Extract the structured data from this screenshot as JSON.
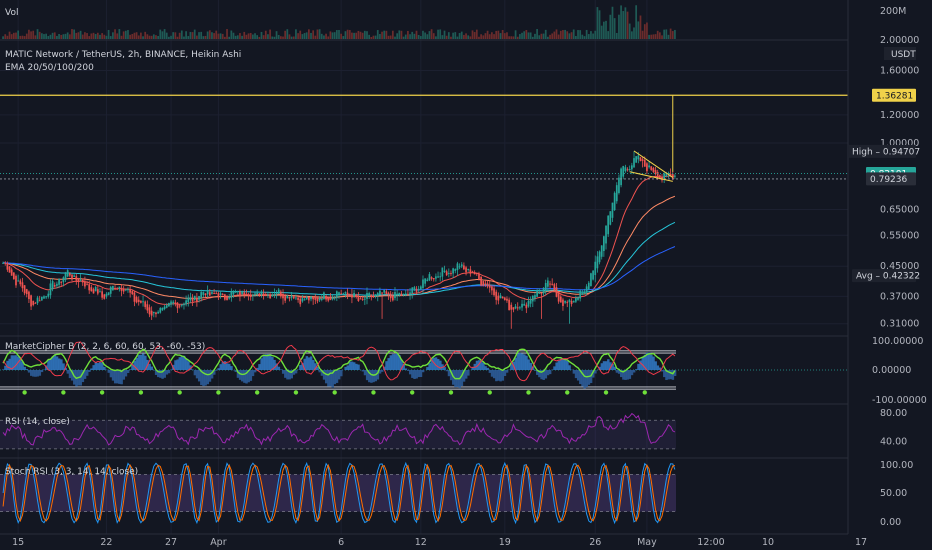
{
  "header": {
    "vol_label": "Vol",
    "symbol_line": "MATIC Network / TetherUS, 2h, BINANCE, Heikin Ashi",
    "ema_line": "EMA 20/50/100/200",
    "currency": "USDT"
  },
  "volume_axis": {
    "ticks": [
      "200M",
      "2.00000"
    ]
  },
  "price_axis": {
    "ticks": [
      {
        "label": "1.60000",
        "value": 1.6
      },
      {
        "label": "1.20000",
        "value": 1.2
      },
      {
        "label": "1.00000",
        "value": 1.0
      },
      {
        "label": "0.65000",
        "value": 0.65
      },
      {
        "label": "0.55000",
        "value": 0.55
      },
      {
        "label": "0.45000",
        "value": 0.45
      },
      {
        "label": "0.37000",
        "value": 0.37
      },
      {
        "label": "0.31000",
        "value": 0.31
      }
    ]
  },
  "price_tags": {
    "level": {
      "label": "1.36281",
      "value": 1.36281,
      "color": "#f0d24a"
    },
    "high": {
      "label": "High  –  0.94707",
      "value": 0.94707,
      "color": "#1e222d"
    },
    "last": {
      "label": "0.82101",
      "value": 0.82101,
      "color": "#26a69a"
    },
    "support": {
      "label": "0.79236",
      "value": 0.79236,
      "color": "#2a2e39"
    },
    "avg": {
      "label": "Avg  –  0.42322",
      "value": 0.42322,
      "color": "#1e222d"
    }
  },
  "indicators": {
    "cipher": {
      "title": "MarketCipher B (2, 2, 6, 60, 60, 53, -60, -53)",
      "ticks": [
        "100.00000",
        "0.00000",
        "-100.00000"
      ]
    },
    "rsi": {
      "title": "RSI (14, close)",
      "ticks": [
        "80.00",
        "40.00"
      ]
    },
    "stoch": {
      "title": "Stoch RSI (3, 3, 14, 14, close)",
      "ticks": [
        "100.00",
        "50.00",
        "0.00"
      ]
    }
  },
  "time_axis": {
    "ticks": [
      {
        "label": "15",
        "bar": 7
      },
      {
        "label": "22",
        "bar": 48
      },
      {
        "label": "27",
        "bar": 78
      },
      {
        "label": "Apr",
        "bar": 100
      },
      {
        "label": "6",
        "bar": 157
      },
      {
        "label": "12",
        "bar": 194
      },
      {
        "label": "19",
        "bar": 233
      },
      {
        "label": "26",
        "bar": 275
      },
      {
        "label": "May",
        "bar": 299
      }
    ],
    "extra_ticks": [
      "12:00",
      "10",
      "17"
    ]
  },
  "colors": {
    "background": "#131722",
    "up": "#26a69a",
    "down": "#ef5350",
    "ema20": "#ef5350",
    "ema50": "#ff8a65",
    "ema100": "#26c6da",
    "ema200": "#2962ff",
    "level_line": "#f0d24a",
    "rsi": "#9c27b0",
    "stoch_k": "#2196f3",
    "stoch_d": "#ff6d00"
  },
  "chart_data": {
    "type": "candlestick",
    "log_scale": true,
    "y_range": [
      0.29,
      1.9
    ],
    "horizontal_levels": [
      1.36281,
      0.79236,
      0.82101
    ],
    "series": [
      {
        "name": "MATIC Network / TetherUS",
        "anchors": [
          [
            0,
            0.46
          ],
          [
            6,
            0.41
          ],
          [
            14,
            0.35
          ],
          [
            22,
            0.39
          ],
          [
            30,
            0.43
          ],
          [
            38,
            0.4
          ],
          [
            46,
            0.37
          ],
          [
            54,
            0.4
          ],
          [
            62,
            0.36
          ],
          [
            70,
            0.33
          ],
          [
            78,
            0.35
          ],
          [
            86,
            0.36
          ],
          [
            94,
            0.38
          ],
          [
            102,
            0.37
          ],
          [
            110,
            0.38
          ],
          [
            118,
            0.375
          ],
          [
            126,
            0.38
          ],
          [
            134,
            0.37
          ],
          [
            142,
            0.36
          ],
          [
            150,
            0.37
          ],
          [
            158,
            0.38
          ],
          [
            166,
            0.36
          ],
          [
            174,
            0.375
          ],
          [
            182,
            0.37
          ],
          [
            190,
            0.38
          ],
          [
            198,
            0.42
          ],
          [
            206,
            0.435
          ],
          [
            212,
            0.45
          ],
          [
            218,
            0.43
          ],
          [
            224,
            0.4
          ],
          [
            230,
            0.37
          ],
          [
            236,
            0.345
          ],
          [
            242,
            0.35
          ],
          [
            248,
            0.38
          ],
          [
            254,
            0.4
          ],
          [
            260,
            0.35
          ],
          [
            264,
            0.36
          ],
          [
            270,
            0.38
          ],
          [
            276,
            0.47
          ],
          [
            280,
            0.58
          ],
          [
            284,
            0.72
          ],
          [
            287,
            0.84
          ],
          [
            290,
            0.86
          ],
          [
            294,
            0.9
          ],
          [
            298,
            0.87
          ],
          [
            302,
            0.83
          ],
          [
            306,
            0.8
          ],
          [
            310,
            0.81
          ],
          [
            312,
            0.82
          ]
        ]
      },
      {
        "name": "Vol",
        "values": "derived"
      },
      {
        "name": "MarketCipher B",
        "range": [
          -100,
          100
        ]
      },
      {
        "name": "RSI (14, close)",
        "range": [
          20,
          90
        ]
      },
      {
        "name": "Stoch RSI (3, 3, 14, 14, close)",
        "range": [
          0,
          100
        ]
      }
    ]
  }
}
